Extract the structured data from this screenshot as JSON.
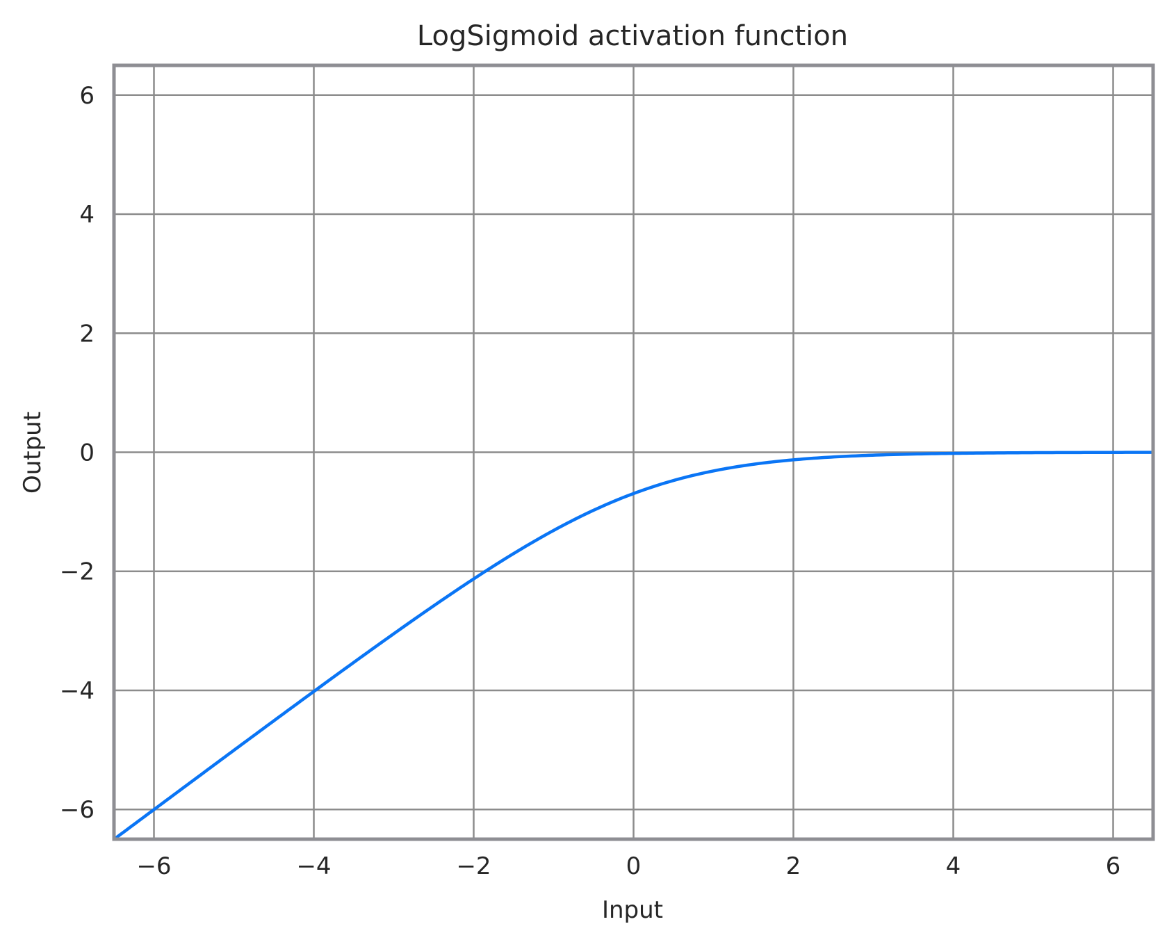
{
  "chart_data": {
    "type": "line",
    "title": "LogSigmoid activation function",
    "xlabel": "Input",
    "ylabel": "Output",
    "xlim": [
      -6.5,
      6.5
    ],
    "ylim": [
      -6.5,
      6.5
    ],
    "x_ticks": [
      -6,
      -4,
      -2,
      0,
      2,
      4,
      6
    ],
    "x_tick_labels": [
      "−6",
      "−4",
      "−2",
      "0",
      "2",
      "4",
      "6"
    ],
    "y_ticks": [
      -6,
      -4,
      -2,
      0,
      2,
      4,
      6
    ],
    "y_tick_labels": [
      "−6",
      "−4",
      "−2",
      "0",
      "2",
      "4",
      "6"
    ],
    "grid": true,
    "series": [
      {
        "color": "#0a75f5",
        "x": [
          -6.5,
          -6.0,
          -5.5,
          -5.0,
          -4.5,
          -4.0,
          -3.5,
          -3.0,
          -2.5,
          -2.0,
          -1.5,
          -1.0,
          -0.5,
          0.0,
          0.5,
          1.0,
          1.5,
          2.0,
          2.5,
          3.0,
          3.5,
          4.0,
          4.5,
          5.0,
          5.5,
          6.0,
          6.5
        ],
        "y": [
          -6.5015,
          -6.0025,
          -5.5041,
          -5.0067,
          -4.5111,
          -4.0181,
          -3.5297,
          -3.0486,
          -2.5789,
          -2.1269,
          -1.7014,
          -1.3133,
          -0.9741,
          -0.6931,
          -0.4741,
          -0.3133,
          -0.2014,
          -0.1269,
          -0.0789,
          -0.0486,
          -0.0297,
          -0.0181,
          -0.0111,
          -0.0067,
          -0.0041,
          -0.0025,
          -0.0015
        ]
      }
    ],
    "colors": {
      "grid": "#8c8c8c",
      "frame": "#8e8e93",
      "line": "#0a75f5",
      "text": "#262626"
    }
  }
}
